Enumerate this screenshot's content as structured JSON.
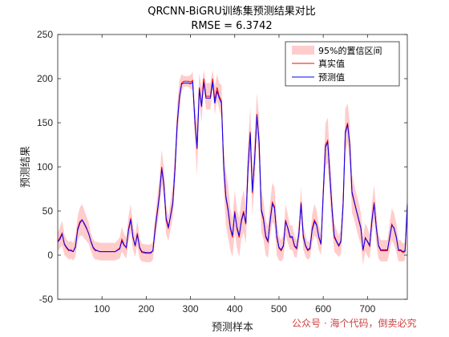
{
  "chart_data": {
    "type": "line",
    "title": "QRCNN-BiGRU训练集预测结果对比",
    "subtitle": "RMSE = 6.3742",
    "xlabel": "预测样本",
    "ylabel": "预测结果",
    "xlim": [
      0,
      790
    ],
    "ylim": [
      -50,
      250
    ],
    "xticks": [
      "100",
      "200",
      "300",
      "400",
      "500",
      "600",
      "700"
    ],
    "yticks": [
      "-50",
      "0",
      "50",
      "100",
      "150",
      "200",
      "250"
    ],
    "legend_position": "top-right",
    "grid": false,
    "series": [
      {
        "name": "95%的置信区间",
        "kind": "band",
        "color": "#ffb3b3"
      },
      {
        "name": "真实值",
        "kind": "line",
        "color": "#ff0000"
      },
      {
        "name": "预测值",
        "kind": "line",
        "color": "#0000ff"
      }
    ],
    "x": [
      0,
      5,
      10,
      15,
      20,
      25,
      30,
      35,
      40,
      45,
      50,
      55,
      60,
      65,
      70,
      75,
      80,
      85,
      90,
      95,
      100,
      110,
      120,
      130,
      140,
      145,
      150,
      155,
      160,
      165,
      170,
      175,
      180,
      185,
      190,
      200,
      210,
      215,
      220,
      225,
      230,
      235,
      240,
      245,
      250,
      255,
      260,
      265,
      270,
      275,
      280,
      285,
      290,
      295,
      300,
      305,
      310,
      315,
      320,
      325,
      330,
      335,
      340,
      345,
      350,
      355,
      360,
      365,
      370,
      375,
      380,
      385,
      390,
      395,
      400,
      405,
      410,
      415,
      420,
      425,
      430,
      435,
      440,
      445,
      450,
      455,
      460,
      465,
      470,
      475,
      480,
      485,
      490,
      495,
      500,
      505,
      510,
      515,
      520,
      525,
      530,
      535,
      540,
      545,
      550,
      555,
      560,
      565,
      570,
      575,
      580,
      585,
      590,
      595,
      600,
      605,
      610,
      615,
      620,
      625,
      630,
      635,
      640,
      645,
      650,
      655,
      660,
      665,
      670,
      675,
      680,
      685,
      690,
      695,
      700,
      705,
      710,
      715,
      720,
      725,
      730,
      735,
      740,
      745,
      750,
      755,
      760,
      765,
      770,
      775,
      780,
      785,
      790
    ],
    "actual": [
      15,
      20,
      25,
      12,
      8,
      5,
      6,
      4,
      10,
      30,
      38,
      40,
      35,
      30,
      25,
      15,
      8,
      5,
      5,
      4,
      4,
      4,
      4,
      4,
      8,
      18,
      12,
      8,
      30,
      42,
      20,
      10,
      25,
      8,
      3,
      2,
      2,
      5,
      30,
      50,
      70,
      100,
      80,
      40,
      30,
      45,
      60,
      100,
      150,
      180,
      195,
      197,
      197,
      197,
      196,
      198,
      150,
      120,
      190,
      170,
      200,
      180,
      180,
      180,
      200,
      175,
      190,
      180,
      175,
      100,
      65,
      50,
      30,
      20,
      50,
      30,
      20,
      40,
      50,
      35,
      100,
      140,
      70,
      110,
      160,
      130,
      50,
      40,
      20,
      15,
      40,
      60,
      55,
      20,
      8,
      5,
      10,
      40,
      30,
      20,
      20,
      10,
      7,
      25,
      60,
      20,
      10,
      5,
      7,
      30,
      40,
      35,
      20,
      12,
      70,
      125,
      130,
      90,
      50,
      20,
      15,
      10,
      15,
      60,
      140,
      150,
      125,
      70,
      60,
      50,
      40,
      30,
      5,
      20,
      15,
      10,
      40,
      60,
      30,
      10,
      5,
      5,
      5,
      5,
      20,
      35,
      30,
      20,
      5,
      5,
      3,
      4,
      55
    ],
    "predicted": [
      15,
      18,
      24,
      13,
      9,
      6,
      5,
      4,
      9,
      28,
      36,
      40,
      36,
      31,
      24,
      16,
      9,
      6,
      5,
      4,
      4,
      4,
      4,
      4,
      7,
      16,
      11,
      9,
      28,
      40,
      21,
      11,
      23,
      9,
      4,
      3,
      3,
      5,
      28,
      48,
      68,
      98,
      78,
      42,
      32,
      44,
      58,
      98,
      148,
      178,
      194,
      195,
      195,
      195,
      194,
      196,
      152,
      122,
      188,
      168,
      196,
      178,
      178,
      178,
      196,
      172,
      186,
      178,
      172,
      102,
      67,
      52,
      32,
      22,
      48,
      32,
      22,
      38,
      48,
      36,
      98,
      138,
      72,
      108,
      158,
      128,
      52,
      42,
      22,
      16,
      38,
      58,
      53,
      22,
      9,
      6,
      11,
      38,
      31,
      21,
      21,
      11,
      8,
      24,
      58,
      22,
      11,
      6,
      8,
      28,
      38,
      34,
      21,
      13,
      68,
      122,
      128,
      92,
      52,
      22,
      16,
      11,
      16,
      58,
      138,
      148,
      124,
      72,
      61,
      51,
      41,
      31,
      6,
      19,
      16,
      11,
      38,
      58,
      31,
      11,
      6,
      6,
      6,
      6,
      19,
      34,
      31,
      21,
      6,
      6,
      4,
      5,
      58
    ],
    "band_halfwidth": [
      10,
      12,
      14,
      12,
      10,
      10,
      10,
      10,
      12,
      14,
      16,
      18,
      16,
      14,
      12,
      10,
      10,
      10,
      10,
      10,
      10,
      10,
      10,
      10,
      12,
      14,
      12,
      12,
      14,
      16,
      14,
      12,
      14,
      12,
      10,
      10,
      10,
      10,
      14,
      16,
      18,
      20,
      18,
      16,
      14,
      16,
      18,
      20,
      20,
      18,
      10,
      6,
      6,
      6,
      8,
      10,
      20,
      30,
      16,
      20,
      10,
      15,
      15,
      15,
      10,
      16,
      15,
      15,
      18,
      24,
      30,
      30,
      24,
      22,
      24,
      22,
      22,
      22,
      24,
      22,
      26,
      28,
      26,
      26,
      24,
      26,
      24,
      22,
      20,
      18,
      20,
      22,
      22,
      20,
      14,
      12,
      14,
      18,
      16,
      14,
      14,
      12,
      10,
      14,
      18,
      14,
      12,
      10,
      10,
      16,
      18,
      16,
      14,
      12,
      18,
      24,
      26,
      24,
      20,
      16,
      14,
      12,
      14,
      20,
      26,
      22,
      24,
      22,
      20,
      20,
      20,
      18,
      16,
      16,
      16,
      14,
      18,
      20,
      18,
      14,
      12,
      12,
      12,
      12,
      16,
      18,
      18,
      16,
      12,
      12,
      10,
      10,
      16
    ]
  },
  "watermark": "公众号 · 海个代码，倒卖必究"
}
